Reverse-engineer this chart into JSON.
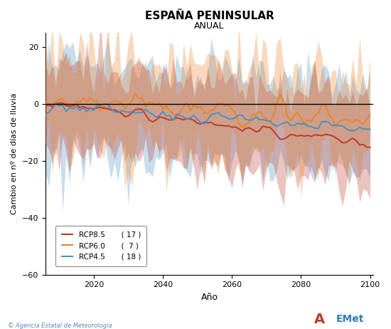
{
  "title": "ESPAÑA PENINSULAR",
  "subtitle": "ANUAL",
  "xlabel": "Año",
  "ylabel": "Cambio en nº de días de lluvia",
  "xlim": [
    2006,
    2101
  ],
  "ylim": [
    -60,
    25
  ],
  "yticks": [
    -60,
    -40,
    -20,
    0,
    20
  ],
  "xticks": [
    2020,
    2040,
    2060,
    2080,
    2100
  ],
  "rcp85_color": "#c0392b",
  "rcp60_color": "#e8832a",
  "rcp45_color": "#4a90c4",
  "rcp85_count": 17,
  "rcp60_count": 7,
  "rcp45_count": 18,
  "footer_text": "© Agencia Estatal de Meteorología",
  "start_year": 2006,
  "end_year": 2100
}
